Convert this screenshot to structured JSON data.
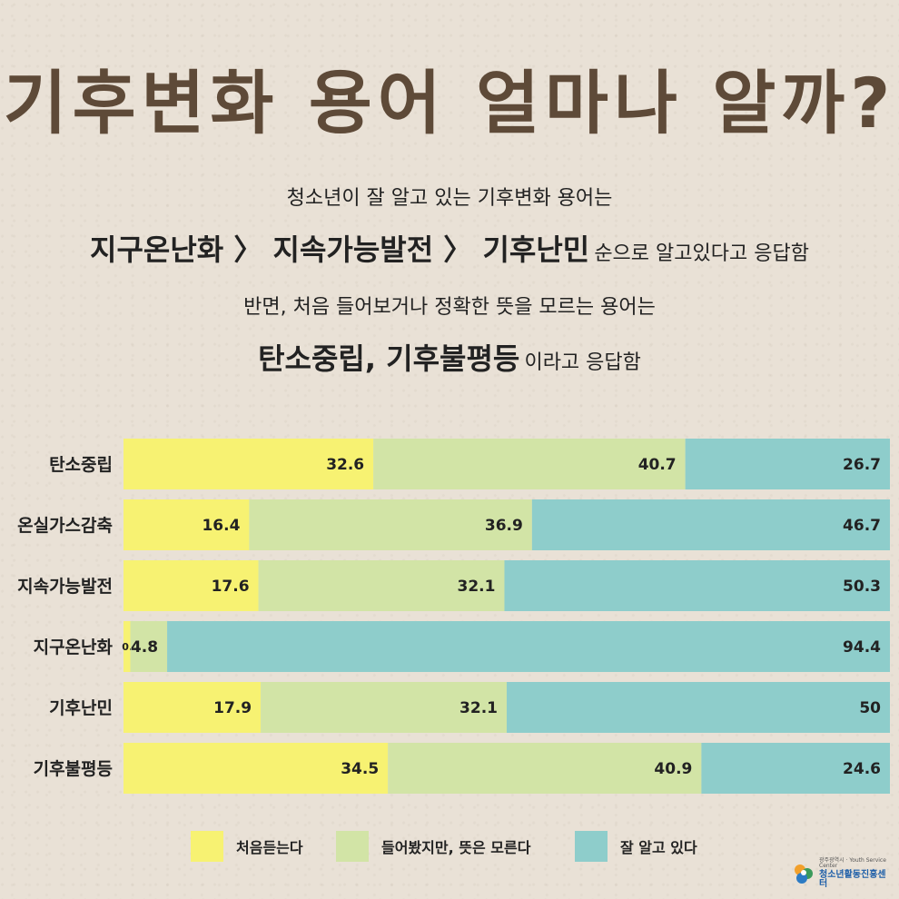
{
  "header": {
    "title": "기후변화 용어 얼마나 알까?",
    "line1": "청소년이 잘 알고 있는 기후변화 용어는",
    "line2_bold": "지구온난화 〉 지속가능발전 〉 기후난민",
    "line2_tail": "순으로 알고있다고 응답함",
    "line3": "반면, 처음 들어보거나 정확한 뜻을 모르는 용어는",
    "line4_bold": "탄소중립, 기후불평등",
    "line4_tail": "이라고 응답함"
  },
  "chart_data": {
    "type": "bar",
    "orientation": "horizontal",
    "stacked": true,
    "categories": [
      "탄소중립",
      "온실가스감축",
      "지속가능발전",
      "지구온난화",
      "기후난민",
      "기후불평등"
    ],
    "series": [
      {
        "name": "처음듣는다",
        "color": "#f7f272",
        "values": [
          32.6,
          16.4,
          17.6,
          0.9,
          17.9,
          34.5
        ]
      },
      {
        "name": "들어봤지만, 뜻은 모른다",
        "color": "#d2e4a6",
        "values": [
          40.7,
          36.9,
          32.1,
          4.8,
          32.1,
          40.9
        ]
      },
      {
        "name": "잘 알고 있다",
        "color": "#8ecdcb",
        "values": [
          26.7,
          46.7,
          50.3,
          94.4,
          50,
          24.6
        ]
      }
    ],
    "value_labels": [
      [
        "32.6",
        "40.7",
        "26.7"
      ],
      [
        "16.4",
        "36.9",
        "46.7"
      ],
      [
        "17.6",
        "32.1",
        "50.3"
      ],
      [
        "0.9",
        "4.8",
        "94.4"
      ],
      [
        "17.9",
        "32.1",
        "50"
      ],
      [
        "34.5",
        "40.9",
        "24.6"
      ]
    ],
    "legend_position": "bottom",
    "grid": false
  },
  "footer": {
    "logo_small": "광주광역시 · Youth Service Center",
    "logo_main": "청소년활동진흥센터"
  }
}
